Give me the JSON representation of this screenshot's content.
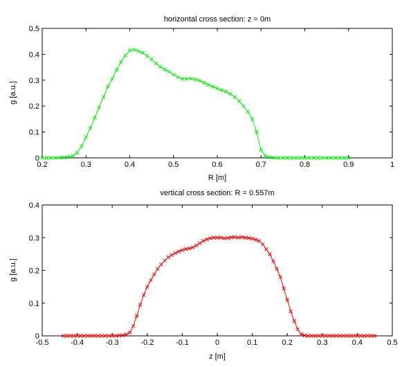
{
  "chart_data": [
    {
      "type": "line",
      "title": "horizontal cross section: z = 0m",
      "xlabel": "R [m]",
      "ylabel": "g [a.u.]",
      "xlim": [
        0.2,
        1
      ],
      "ylim": [
        0,
        0.5
      ],
      "xticks": [
        "0.2",
        "0.3",
        "0.4",
        "0.5",
        "0.6",
        "0.7",
        "0.8",
        "0.9",
        "1"
      ],
      "yticks": [
        "0",
        "0.1",
        "0.2",
        "0.3",
        "0.4",
        "0.5"
      ],
      "grid": false,
      "marker": "x",
      "color": "#00ee00",
      "series": [
        {
          "x": [
            0.2,
            0.21,
            0.22,
            0.23,
            0.24,
            0.25,
            0.26,
            0.27,
            0.28,
            0.29,
            0.3,
            0.31,
            0.32,
            0.33,
            0.34,
            0.35,
            0.36,
            0.37,
            0.38,
            0.39,
            0.4,
            0.41,
            0.42,
            0.43,
            0.44,
            0.45,
            0.46,
            0.47,
            0.48,
            0.49,
            0.5,
            0.51,
            0.52,
            0.53,
            0.54,
            0.55,
            0.56,
            0.57,
            0.58,
            0.59,
            0.6,
            0.61,
            0.62,
            0.63,
            0.64,
            0.65,
            0.66,
            0.67,
            0.68,
            0.69,
            0.7,
            0.71,
            0.72,
            0.73,
            0.74,
            0.75,
            0.76,
            0.77,
            0.78,
            0.79,
            0.8,
            0.81,
            0.82,
            0.83,
            0.84,
            0.85,
            0.86,
            0.87,
            0.88,
            0.89,
            0.9
          ],
          "y": [
            0.0,
            0.0,
            0.0,
            0.0,
            0.001,
            0.002,
            0.004,
            0.008,
            0.02,
            0.045,
            0.08,
            0.115,
            0.155,
            0.195,
            0.235,
            0.275,
            0.305,
            0.34,
            0.37,
            0.395,
            0.415,
            0.418,
            0.412,
            0.405,
            0.393,
            0.38,
            0.365,
            0.352,
            0.342,
            0.333,
            0.322,
            0.312,
            0.305,
            0.305,
            0.306,
            0.303,
            0.298,
            0.29,
            0.282,
            0.275,
            0.268,
            0.262,
            0.256,
            0.247,
            0.235,
            0.22,
            0.2,
            0.178,
            0.15,
            0.1,
            0.03,
            0.008,
            0.003,
            0.001,
            0.0,
            0.0,
            0.0,
            0.0,
            0.0,
            0.0,
            0.0,
            0.0,
            0.0,
            0.0,
            0.0,
            0.0,
            0.0,
            0.0,
            0.0,
            0.0,
            0.0
          ]
        }
      ]
    },
    {
      "type": "line",
      "title": "vertical cross section: R = 0.557m",
      "xlabel": "z [m]",
      "ylabel": "g [a.u.]",
      "xlim": [
        -0.5,
        0.5
      ],
      "ylim": [
        0,
        0.4
      ],
      "xticks": [
        "-0.5",
        "-0.4",
        "-0.3",
        "-0.2",
        "-0.1",
        "0",
        "0.1",
        "0.2",
        "0.3",
        "0.4",
        "0.5"
      ],
      "yticks": [
        "0",
        "0.1",
        "0.2",
        "0.3",
        "0.4"
      ],
      "grid": false,
      "marker": "x",
      "color": "#ee0000",
      "series": [
        {
          "x": [
            -0.44,
            -0.43,
            -0.42,
            -0.41,
            -0.4,
            -0.39,
            -0.38,
            -0.37,
            -0.36,
            -0.35,
            -0.34,
            -0.33,
            -0.32,
            -0.31,
            -0.3,
            -0.29,
            -0.28,
            -0.27,
            -0.26,
            -0.25,
            -0.24,
            -0.23,
            -0.22,
            -0.21,
            -0.2,
            -0.19,
            -0.18,
            -0.17,
            -0.16,
            -0.15,
            -0.14,
            -0.13,
            -0.12,
            -0.11,
            -0.1,
            -0.09,
            -0.08,
            -0.07,
            -0.06,
            -0.05,
            -0.04,
            -0.03,
            -0.02,
            -0.01,
            0.0,
            0.01,
            0.02,
            0.03,
            0.04,
            0.05,
            0.06,
            0.07,
            0.08,
            0.09,
            0.1,
            0.11,
            0.12,
            0.13,
            0.14,
            0.15,
            0.16,
            0.17,
            0.18,
            0.19,
            0.2,
            0.21,
            0.22,
            0.23,
            0.24,
            0.25,
            0.26,
            0.27,
            0.28,
            0.29,
            0.3,
            0.31,
            0.32,
            0.33,
            0.34,
            0.35,
            0.36,
            0.37,
            0.38,
            0.39,
            0.4,
            0.41,
            0.42,
            0.43,
            0.44,
            0.45
          ],
          "y": [
            0.0,
            0.0,
            0.0,
            0.0,
            0.0,
            0.0,
            0.0,
            0.0,
            0.0,
            0.0,
            0.0,
            0.0,
            0.0,
            0.0,
            0.0,
            0.0,
            0.001,
            0.002,
            0.004,
            0.01,
            0.03,
            0.06,
            0.095,
            0.125,
            0.15,
            0.17,
            0.188,
            0.205,
            0.218,
            0.23,
            0.24,
            0.247,
            0.253,
            0.258,
            0.262,
            0.265,
            0.267,
            0.27,
            0.276,
            0.283,
            0.29,
            0.295,
            0.298,
            0.3,
            0.3,
            0.3,
            0.298,
            0.299,
            0.301,
            0.302,
            0.3,
            0.302,
            0.3,
            0.299,
            0.297,
            0.294,
            0.29,
            0.28,
            0.265,
            0.25,
            0.228,
            0.205,
            0.18,
            0.145,
            0.11,
            0.075,
            0.045,
            0.02,
            0.005,
            0.001,
            0.0,
            0.0,
            0.0,
            0.0,
            0.0,
            0.0,
            0.0,
            0.0,
            0.0,
            0.0,
            0.0,
            0.0,
            0.0,
            0.0,
            0.0,
            0.0,
            0.0,
            0.0,
            0.0,
            0.0
          ]
        }
      ]
    }
  ]
}
